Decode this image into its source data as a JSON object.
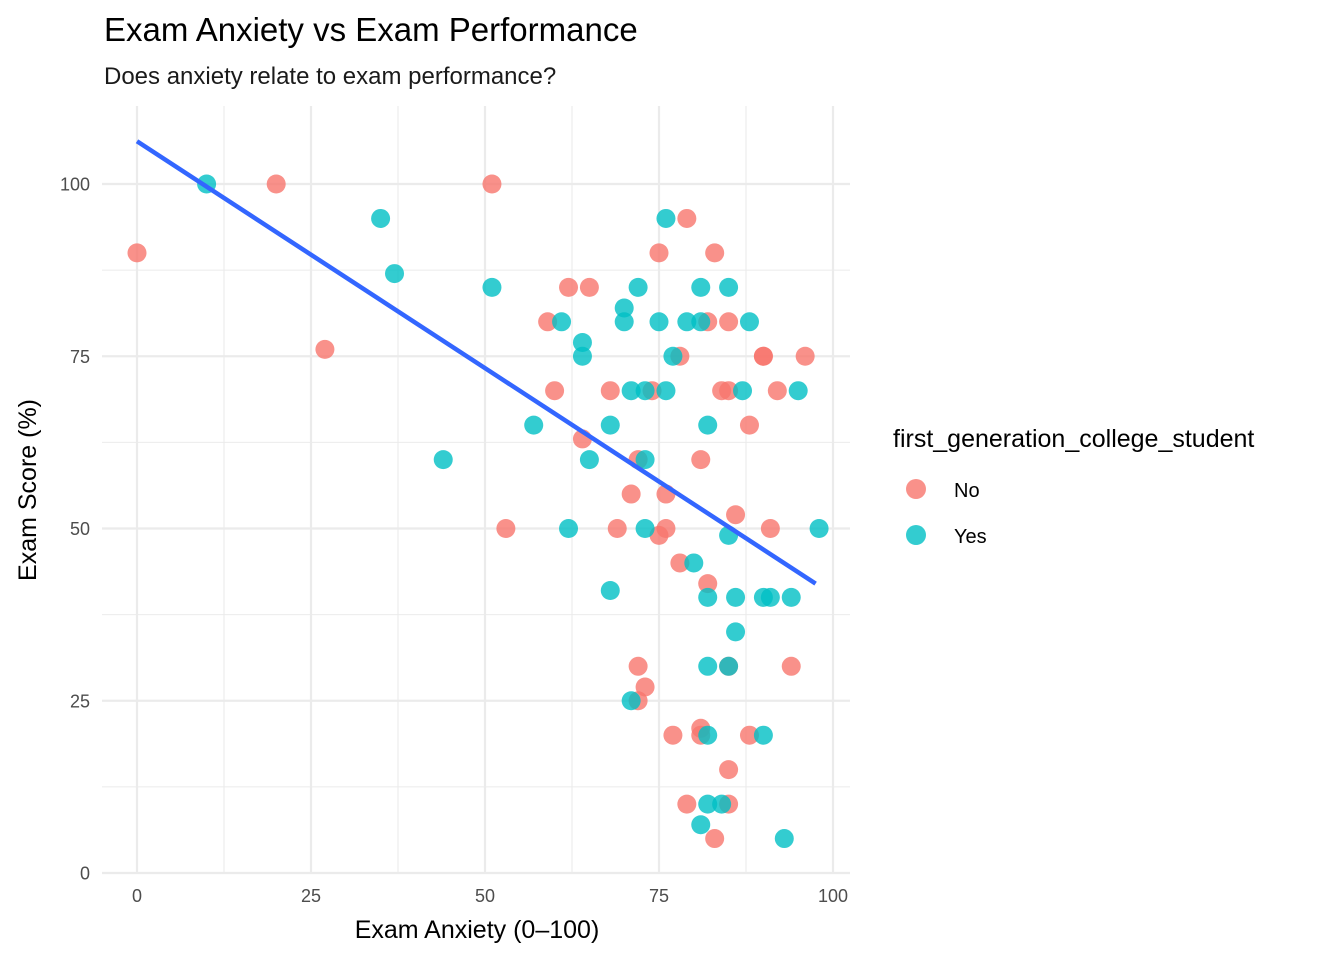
{
  "chart_data": {
    "type": "scatter",
    "title": "Exam Anxiety vs Exam Performance",
    "subtitle": "Does anxiety relate to exam performance?",
    "xlabel": "Exam Anxiety (0–100)",
    "ylabel": "Exam Score (%)",
    "xlim": [
      -5,
      102
    ],
    "ylim": [
      0,
      110
    ],
    "x_ticks": [
      0,
      25,
      50,
      75,
      100
    ],
    "x_tick_labels": [
      "0",
      "25",
      "50",
      "75",
      "100"
    ],
    "y_ticks": [
      0,
      25,
      50,
      75,
      100
    ],
    "y_tick_labels": [
      "0",
      "25",
      "50",
      "75",
      "100"
    ],
    "grid": true,
    "legend": {
      "title": "first_generation_college_student",
      "position": "right",
      "entries": [
        "No",
        "Yes"
      ]
    },
    "series": [
      {
        "name": "No",
        "color": "#F8766D",
        "points": [
          [
            0,
            90
          ],
          [
            20,
            100
          ],
          [
            27,
            76
          ],
          [
            51,
            100
          ],
          [
            53,
            50
          ],
          [
            59,
            80
          ],
          [
            60,
            70
          ],
          [
            62,
            85
          ],
          [
            64,
            63
          ],
          [
            65,
            85
          ],
          [
            68,
            70
          ],
          [
            69,
            50
          ],
          [
            71,
            55
          ],
          [
            72,
            60
          ],
          [
            72,
            30
          ],
          [
            72,
            25
          ],
          [
            73,
            27
          ],
          [
            74,
            70
          ],
          [
            75,
            49
          ],
          [
            75,
            90
          ],
          [
            76,
            55
          ],
          [
            76,
            50
          ],
          [
            77,
            20
          ],
          [
            78,
            75
          ],
          [
            78,
            45
          ],
          [
            79,
            10
          ],
          [
            79,
            95
          ],
          [
            81,
            60
          ],
          [
            81,
            21
          ],
          [
            81,
            20
          ],
          [
            82,
            42
          ],
          [
            82,
            80
          ],
          [
            83,
            5
          ],
          [
            83,
            90
          ],
          [
            84,
            70
          ],
          [
            85,
            70
          ],
          [
            85,
            80
          ],
          [
            85,
            30
          ],
          [
            85,
            15
          ],
          [
            85,
            10
          ],
          [
            86,
            52
          ],
          [
            88,
            65
          ],
          [
            88,
            20
          ],
          [
            90,
            75
          ],
          [
            90,
            75
          ],
          [
            91,
            50
          ],
          [
            92,
            70
          ],
          [
            94,
            30
          ],
          [
            96,
            75
          ]
        ]
      },
      {
        "name": "Yes",
        "color": "#00BFC4",
        "points": [
          [
            10,
            100
          ],
          [
            35,
            95
          ],
          [
            37,
            87
          ],
          [
            44,
            60
          ],
          [
            51,
            85
          ],
          [
            57,
            65
          ],
          [
            61,
            80
          ],
          [
            62,
            50
          ],
          [
            64,
            77
          ],
          [
            64,
            75
          ],
          [
            65,
            60
          ],
          [
            68,
            65
          ],
          [
            68,
            41
          ],
          [
            70,
            80
          ],
          [
            70,
            82
          ],
          [
            71,
            70
          ],
          [
            71,
            25
          ],
          [
            72,
            85
          ],
          [
            73,
            60
          ],
          [
            73,
            50
          ],
          [
            73,
            70
          ],
          [
            75,
            80
          ],
          [
            76,
            95
          ],
          [
            76,
            70
          ],
          [
            77,
            75
          ],
          [
            79,
            80
          ],
          [
            80,
            45
          ],
          [
            81,
            85
          ],
          [
            81,
            80
          ],
          [
            81,
            7
          ],
          [
            82,
            65
          ],
          [
            82,
            40
          ],
          [
            82,
            30
          ],
          [
            82,
            20
          ],
          [
            82,
            10
          ],
          [
            84,
            10
          ],
          [
            85,
            85
          ],
          [
            85,
            49
          ],
          [
            85,
            30
          ],
          [
            86,
            40
          ],
          [
            86,
            35
          ],
          [
            87,
            70
          ],
          [
            88,
            80
          ],
          [
            90,
            40
          ],
          [
            90,
            20
          ],
          [
            91,
            40
          ],
          [
            93,
            5
          ],
          [
            94,
            40
          ],
          [
            95,
            70
          ],
          [
            98,
            50
          ]
        ]
      }
    ],
    "trend_line": {
      "color": "#3366FF",
      "x": [
        0,
        97.5
      ],
      "y": [
        106.2,
        42
      ]
    }
  }
}
